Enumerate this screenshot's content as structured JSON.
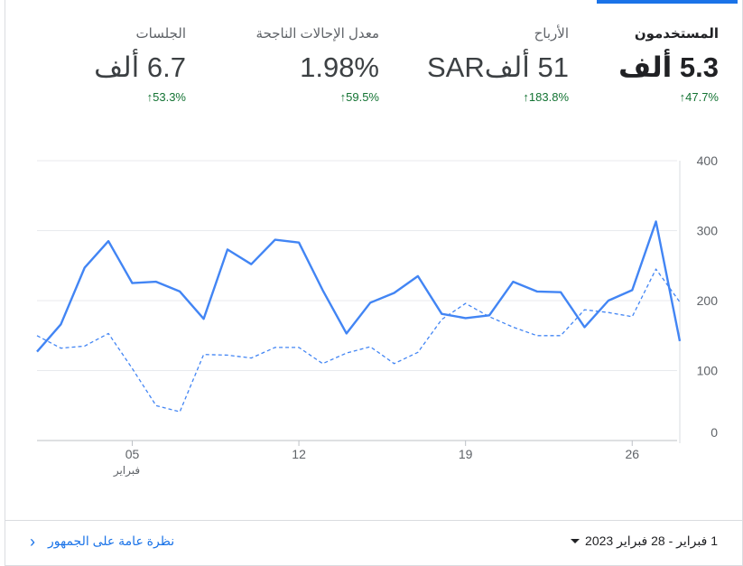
{
  "metrics": [
    {
      "label": "المستخدمون",
      "value": "5.3 ألف",
      "delta": "47.7%",
      "active": true
    },
    {
      "label": "الأرباح",
      "value": "51 ألفSAR",
      "delta": "183.8%",
      "active": false
    },
    {
      "label": "معدل الإحالات الناجحة",
      "value": "1.98%",
      "delta": "59.5%",
      "active": false
    },
    {
      "label": "الجلسات",
      "value": "6.7 ألف",
      "delta": "53.3%",
      "active": false
    }
  ],
  "delta_arrow": "↑",
  "footer": {
    "date_range": "1 فبراير - 28 فبراير 2023",
    "overview_link": "نظرة عامة على الجمهور",
    "chevron": "‹"
  },
  "colors": {
    "accent": "#1a73e8",
    "line": "#4285f4",
    "positive": "#137333"
  },
  "chart_data": {
    "type": "line",
    "x": [
      1,
      2,
      3,
      4,
      5,
      6,
      7,
      8,
      9,
      10,
      11,
      12,
      13,
      14,
      15,
      16,
      17,
      18,
      19,
      20,
      21,
      22,
      23,
      24,
      25,
      26,
      27,
      28
    ],
    "x_ticks": [
      {
        "x": 5,
        "label": "05",
        "sublabel": "فبراير"
      },
      {
        "x": 12,
        "label": "12"
      },
      {
        "x": 19,
        "label": "19"
      },
      {
        "x": 26,
        "label": "26"
      }
    ],
    "y_ticks": [
      "0",
      "100",
      "200",
      "300",
      "400"
    ],
    "ylim": [
      0,
      400
    ],
    "grid": true,
    "series": [
      {
        "style": "solid",
        "values": [
          127,
          166,
          247,
          285,
          225,
          227,
          213,
          174,
          273,
          252,
          287,
          283,
          215,
          153,
          197,
          211,
          235,
          181,
          175,
          179,
          227,
          213,
          212,
          162,
          200,
          215,
          313,
          142
        ]
      },
      {
        "style": "dashed",
        "values": [
          150,
          132,
          135,
          153,
          103,
          50,
          41,
          123,
          122,
          118,
          133,
          133,
          110,
          125,
          134,
          110,
          126,
          173,
          196,
          177,
          162,
          150,
          150,
          187,
          183,
          177,
          245,
          198
        ]
      }
    ]
  }
}
